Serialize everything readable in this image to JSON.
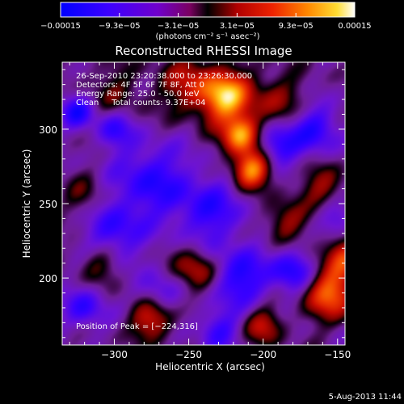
{
  "colorbar": {
    "ticks": [
      "−0.00015",
      "−9.3e−05",
      "−3.1e−05",
      "3.1e−05",
      "9.3e−05",
      "0.00015"
    ],
    "unit_label": "(photons cm⁻² s⁻¹ asec⁻²)",
    "vmin": -0.00015,
    "vmax": 0.00015
  },
  "chart_data": {
    "type": "heatmap",
    "title": "Reconstructed RHESSI Image",
    "xlabel": "Heliocentric X (arcsec)",
    "ylabel": "Heliocentric Y (arcsec)",
    "xlim": [
      -335,
      -145
    ],
    "ylim": [
      155,
      345
    ],
    "xticks": [
      -300,
      -250,
      -200,
      -150
    ],
    "yticks": [
      200,
      250,
      300
    ],
    "xtick_labels": [
      "−300",
      "−250",
      "−200",
      "−150"
    ],
    "ytick_labels": [
      "200",
      "250",
      "300"
    ],
    "peak": [
      -224,
      316
    ],
    "annotations": [
      "26-Sep-2010 23:20:38.000 to 23:26:30.000",
      "Detectors: 4F 5F 6F 7F 8F, Att 0",
      "Energy Range: 25.0 - 50.0 keV",
      "Clean     Total counts: 9.37E+04"
    ],
    "peak_label": "Position of Peak = [−224,316]",
    "hotspots": [
      {
        "x": -225,
        "y": 322,
        "sigma": 12,
        "amp": 1.0
      },
      {
        "x": -215,
        "y": 296,
        "sigma": 9,
        "amp": 0.9
      },
      {
        "x": -208,
        "y": 273,
        "sigma": 9,
        "amp": 0.95
      },
      {
        "x": -250,
        "y": 330,
        "sigma": 14,
        "amp": 0.45
      },
      {
        "x": -190,
        "y": 318,
        "sigma": 14,
        "amp": 0.35
      },
      {
        "x": -300,
        "y": 325,
        "sigma": 14,
        "amp": 0.25
      },
      {
        "x": -155,
        "y": 190,
        "sigma": 12,
        "amp": 0.8
      },
      {
        "x": -145,
        "y": 215,
        "sigma": 10,
        "amp": 0.55
      },
      {
        "x": -275,
        "y": 173,
        "sigma": 10,
        "amp": 0.6
      },
      {
        "x": -200,
        "y": 168,
        "sigma": 9,
        "amp": 0.5
      },
      {
        "x": -245,
        "y": 205,
        "sigma": 10,
        "amp": 0.55
      },
      {
        "x": -185,
        "y": 238,
        "sigma": 10,
        "amp": 0.4
      },
      {
        "x": -160,
        "y": 262,
        "sigma": 10,
        "amp": 0.4
      },
      {
        "x": -310,
        "y": 210,
        "sigma": 10,
        "amp": 0.35
      },
      {
        "x": -320,
        "y": 255,
        "sigma": 10,
        "amp": 0.25
      },
      {
        "x": -300,
        "y": 300,
        "sigma": 9,
        "amp": -0.5
      },
      {
        "x": -325,
        "y": 312,
        "sigma": 8,
        "amp": -0.6
      },
      {
        "x": -275,
        "y": 265,
        "sigma": 18,
        "amp": -0.55
      },
      {
        "x": -235,
        "y": 245,
        "sigma": 16,
        "amp": -0.5
      },
      {
        "x": -300,
        "y": 230,
        "sigma": 14,
        "amp": -0.5
      },
      {
        "x": -190,
        "y": 290,
        "sigma": 10,
        "amp": -0.6
      },
      {
        "x": -165,
        "y": 300,
        "sigma": 12,
        "amp": -0.55
      },
      {
        "x": -215,
        "y": 200,
        "sigma": 14,
        "amp": -0.6
      },
      {
        "x": -270,
        "y": 190,
        "sigma": 10,
        "amp": -0.4
      },
      {
        "x": -320,
        "y": 180,
        "sigma": 10,
        "amp": -0.5
      },
      {
        "x": -180,
        "y": 205,
        "sigma": 10,
        "amp": -0.6
      },
      {
        "x": -230,
        "y": 165,
        "sigma": 10,
        "amp": -0.45
      },
      {
        "x": -150,
        "y": 240,
        "sigma": 8,
        "amp": -0.35
      }
    ]
  },
  "footer": {
    "date": "5-Aug-2013 11:44"
  }
}
